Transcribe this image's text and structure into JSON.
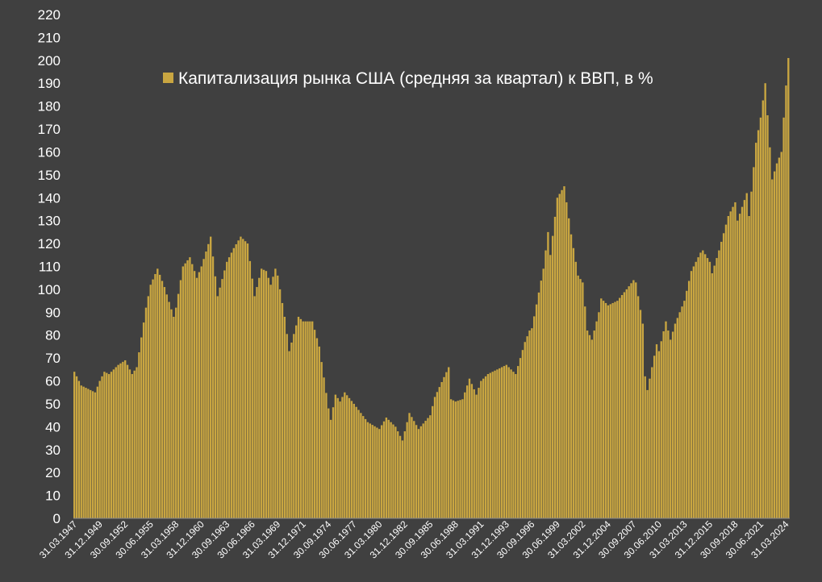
{
  "chart_data": {
    "type": "bar",
    "title": "",
    "xlabel": "",
    "ylabel": "",
    "ylim": [
      0,
      220
    ],
    "y_ticks": [
      0,
      10,
      20,
      30,
      40,
      50,
      60,
      70,
      80,
      90,
      100,
      110,
      120,
      130,
      140,
      150,
      160,
      170,
      180,
      190,
      200,
      210,
      220
    ],
    "grid": false,
    "legend_position": "top-center",
    "x_tick_labels": [
      "31.03.1947",
      "31.12.1949",
      "30.09.1952",
      "30.06.1955",
      "31.03.1958",
      "31.12.1960",
      "30.09.1963",
      "30.06.1966",
      "31.03.1969",
      "31.12.1971",
      "30.09.1974",
      "30.06.1977",
      "31.03.1980",
      "31.12.1982",
      "30.09.1985",
      "30.06.1988",
      "31.03.1991",
      "31.12.1993",
      "30.09.1996",
      "30.06.1999",
      "31.03.2002",
      "31.12.2004",
      "30.09.2007",
      "30.06.2010",
      "31.03.2013",
      "31.12.2015",
      "30.09.2018",
      "30.06.2021",
      "31.03.2024"
    ],
    "series": [
      {
        "name": "Капитализация рынка США (средняя за квартал) к ВВП, в %",
        "color": "#c9a641",
        "anchors": [
          {
            "x": "31.03.1947",
            "y": 64
          },
          {
            "x": "31.12.1947",
            "y": 58
          },
          {
            "x": "31.12.1948",
            "y": 56
          },
          {
            "x": "30.06.1949",
            "y": 55
          },
          {
            "x": "31.12.1949",
            "y": 60
          },
          {
            "x": "30.06.1950",
            "y": 64
          },
          {
            "x": "31.12.1950",
            "y": 63
          },
          {
            "x": "31.12.1951",
            "y": 67
          },
          {
            "x": "30.09.1952",
            "y": 69
          },
          {
            "x": "30.06.1953",
            "y": 63
          },
          {
            "x": "31.12.1953",
            "y": 66
          },
          {
            "x": "31.12.1954",
            "y": 92
          },
          {
            "x": "30.06.1955",
            "y": 102
          },
          {
            "x": "31.03.1956",
            "y": 109
          },
          {
            "x": "31.12.1956",
            "y": 101
          },
          {
            "x": "31.12.1957",
            "y": 88
          },
          {
            "x": "31.03.1958",
            "y": 92
          },
          {
            "x": "31.12.1958",
            "y": 110
          },
          {
            "x": "30.09.1959",
            "y": 114
          },
          {
            "x": "30.06.1960",
            "y": 105
          },
          {
            "x": "31.12.1960",
            "y": 110
          },
          {
            "x": "31.12.1961",
            "y": 123
          },
          {
            "x": "30.09.1962",
            "y": 97
          },
          {
            "x": "30.09.1963",
            "y": 112
          },
          {
            "x": "30.06.1964",
            "y": 118
          },
          {
            "x": "31.03.1965",
            "y": 123
          },
          {
            "x": "31.12.1965",
            "y": 120
          },
          {
            "x": "30.09.1966",
            "y": 97
          },
          {
            "x": "30.06.1967",
            "y": 109
          },
          {
            "x": "31.12.1967",
            "y": 108
          },
          {
            "x": "30.06.1968",
            "y": 102
          },
          {
            "x": "31.12.1968",
            "y": 109
          },
          {
            "x": "31.03.1969",
            "y": 106
          },
          {
            "x": "31.12.1969",
            "y": 88
          },
          {
            "x": "30.06.1970",
            "y": 73
          },
          {
            "x": "30.06.1971",
            "y": 88
          },
          {
            "x": "31.12.1971",
            "y": 86
          },
          {
            "x": "31.12.1972",
            "y": 86
          },
          {
            "x": "30.09.1973",
            "y": 75
          },
          {
            "x": "30.09.1974",
            "y": 48
          },
          {
            "x": "31.12.1974",
            "y": 43
          },
          {
            "x": "30.06.1975",
            "y": 54
          },
          {
            "x": "31.12.1975",
            "y": 51
          },
          {
            "x": "30.06.1976",
            "y": 55
          },
          {
            "x": "30.06.1977",
            "y": 50
          },
          {
            "x": "31.12.1978",
            "y": 42
          },
          {
            "x": "31.03.1980",
            "y": 39
          },
          {
            "x": "31.12.1980",
            "y": 44
          },
          {
            "x": "31.12.1981",
            "y": 40
          },
          {
            "x": "30.09.1982",
            "y": 34
          },
          {
            "x": "31.12.1982",
            "y": 38
          },
          {
            "x": "30.06.1983",
            "y": 46
          },
          {
            "x": "30.06.1984",
            "y": 39
          },
          {
            "x": "30.09.1985",
            "y": 45
          },
          {
            "x": "31.03.1986",
            "y": 53
          },
          {
            "x": "30.09.1987",
            "y": 66
          },
          {
            "x": "31.12.1987",
            "y": 52
          },
          {
            "x": "30.06.1988",
            "y": 51
          },
          {
            "x": "31.03.1989",
            "y": 52
          },
          {
            "x": "31.12.1989",
            "y": 61
          },
          {
            "x": "30.09.1990",
            "y": 54
          },
          {
            "x": "31.03.1991",
            "y": 60
          },
          {
            "x": "31.12.1991",
            "y": 63
          },
          {
            "x": "31.12.1992",
            "y": 65
          },
          {
            "x": "31.12.1993",
            "y": 67
          },
          {
            "x": "31.12.1994",
            "y": 63
          },
          {
            "x": "31.12.1995",
            "y": 77
          },
          {
            "x": "30.06.1996",
            "y": 82
          },
          {
            "x": "30.09.1996",
            "y": 83
          },
          {
            "x": "31.12.1997",
            "y": 109
          },
          {
            "x": "30.06.1998",
            "y": 125
          },
          {
            "x": "30.09.1998",
            "y": 115
          },
          {
            "x": "30.06.1999",
            "y": 140
          },
          {
            "x": "31.03.2000",
            "y": 145
          },
          {
            "x": "31.12.2000",
            "y": 124
          },
          {
            "x": "30.09.2001",
            "y": 106
          },
          {
            "x": "31.03.2002",
            "y": 103
          },
          {
            "x": "30.09.2002",
            "y": 82
          },
          {
            "x": "31.03.2003",
            "y": 78
          },
          {
            "x": "31.12.2003",
            "y": 90
          },
          {
            "x": "31.03.2004",
            "y": 96
          },
          {
            "x": "31.12.2004",
            "y": 93
          },
          {
            "x": "31.12.2005",
            "y": 95
          },
          {
            "x": "31.12.2006",
            "y": 100
          },
          {
            "x": "30.09.2007",
            "y": 104
          },
          {
            "x": "31.12.2007",
            "y": 103
          },
          {
            "x": "30.09.2008",
            "y": 85
          },
          {
            "x": "31.12.2008",
            "y": 62
          },
          {
            "x": "31.03.2009",
            "y": 56
          },
          {
            "x": "31.03.2010",
            "y": 76
          },
          {
            "x": "30.06.2010",
            "y": 73
          },
          {
            "x": "31.03.2011",
            "y": 86
          },
          {
            "x": "30.09.2011",
            "y": 78
          },
          {
            "x": "31.03.2012",
            "y": 85
          },
          {
            "x": "31.03.2013",
            "y": 95
          },
          {
            "x": "31.12.2013",
            "y": 108
          },
          {
            "x": "31.12.2014",
            "y": 116
          },
          {
            "x": "31.03.2015",
            "y": 117
          },
          {
            "x": "31.12.2015",
            "y": 112
          },
          {
            "x": "31.03.2016",
            "y": 107
          },
          {
            "x": "31.12.2016",
            "y": 117
          },
          {
            "x": "31.12.2017",
            "y": 132
          },
          {
            "x": "30.09.2018",
            "y": 138
          },
          {
            "x": "31.12.2018",
            "y": 130
          },
          {
            "x": "31.12.2019",
            "y": 142
          },
          {
            "x": "31.03.2020",
            "y": 132
          },
          {
            "x": "31.12.2020",
            "y": 164
          },
          {
            "x": "30.06.2021",
            "y": 175
          },
          {
            "x": "31.12.2021",
            "y": 190
          },
          {
            "x": "30.06.2022",
            "y": 162
          },
          {
            "x": "30.09.2022",
            "y": 148
          },
          {
            "x": "31.03.2023",
            "y": 155
          },
          {
            "x": "30.09.2023",
            "y": 160
          },
          {
            "x": "31.12.2023",
            "y": 175
          },
          {
            "x": "31.03.2024",
            "y": 189
          },
          {
            "x": "30.06.2024",
            "y": 201
          }
        ]
      }
    ]
  }
}
